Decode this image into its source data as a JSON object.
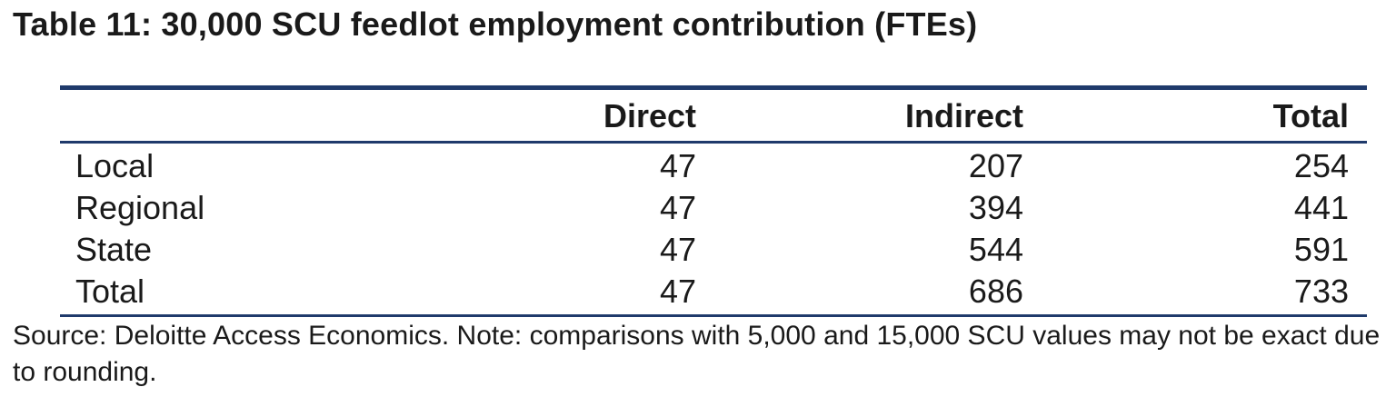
{
  "title": "Table 11: 30,000 SCU feedlot employment contribution (FTEs)",
  "table": {
    "headers": [
      "",
      "Direct",
      "Indirect",
      "Total"
    ],
    "rows": [
      {
        "label": "Local",
        "direct": "47",
        "indirect": "207",
        "total": "254"
      },
      {
        "label": "Regional",
        "direct": "47",
        "indirect": "394",
        "total": "441"
      },
      {
        "label": "State",
        "direct": "47",
        "indirect": "544",
        "total": "591"
      },
      {
        "label": "Total",
        "direct": "47",
        "indirect": "686",
        "total": "733"
      }
    ]
  },
  "source_note": "Source: Deloitte Access Economics. Note: comparisons with 5,000 and 15,000 SCU values may not be exact due to rounding.",
  "colors": {
    "rule": "#1f3a6b",
    "text": "#1a1a1a"
  }
}
